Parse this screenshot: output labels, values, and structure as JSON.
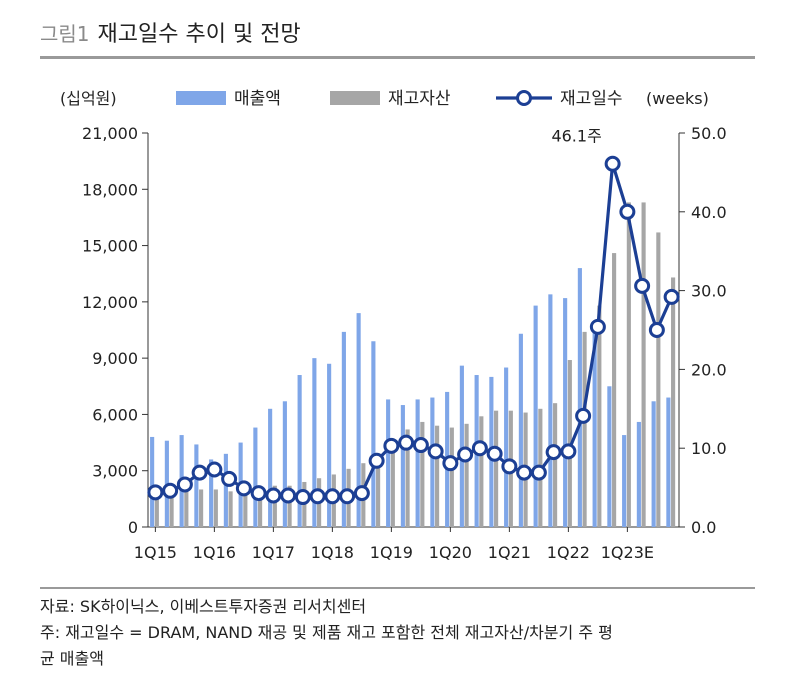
{
  "figure": {
    "label": "그림1",
    "title": "재고일수 추이 및 전망"
  },
  "chart_data": {
    "type": "bar",
    "left_unit": "(십억원)",
    "right_unit": "(weeks)",
    "left_ylim": [
      0,
      21000
    ],
    "left_ticks": [
      "0",
      "3,000",
      "6,000",
      "9,000",
      "12,000",
      "15,000",
      "18,000",
      "21,000"
    ],
    "right_ylim": [
      0,
      50
    ],
    "right_ticks": [
      "0.0",
      "10.0",
      "20.0",
      "30.0",
      "40.0",
      "50.0"
    ],
    "x_tick_labels": [
      "1Q15",
      "1Q16",
      "1Q17",
      "1Q18",
      "1Q19",
      "1Q20",
      "1Q21",
      "1Q22",
      "1Q23E"
    ],
    "peak_annotation": "46.1주",
    "colors": {
      "sales": "#7fa6e8",
      "inventory": "#a6a6a6",
      "days": "#1c3f94"
    },
    "series": [
      {
        "name": "매출액",
        "kind": "bar",
        "values": [
          4800,
          4600,
          4900,
          4400,
          3600,
          3900,
          4500,
          5300,
          6300,
          6700,
          8100,
          9000,
          8700,
          10400,
          11400,
          9900,
          6800,
          6500,
          6800,
          6900,
          7200,
          8600,
          8100,
          8000,
          8500,
          10300,
          11800,
          12400,
          12200,
          13800,
          10900,
          7500,
          4900,
          5600,
          6700,
          6900
        ]
      },
      {
        "name": "재고자산",
        "kind": "bar",
        "values": [
          1900,
          1900,
          2000,
          2000,
          2000,
          1900,
          2000,
          2100,
          2200,
          2200,
          2400,
          2600,
          2800,
          3100,
          3400,
          3900,
          4700,
          5200,
          5600,
          5400,
          5300,
          5500,
          5900,
          6200,
          6200,
          6100,
          6300,
          6600,
          8900,
          10400,
          11800,
          14600,
          17300,
          17300,
          15700,
          13300
        ]
      },
      {
        "name": "재고일수",
        "kind": "line",
        "values": [
          4.4,
          4.6,
          5.4,
          6.9,
          7.3,
          6.1,
          4.9,
          4.3,
          4.0,
          4.0,
          3.8,
          3.9,
          3.9,
          3.9,
          4.3,
          8.4,
          10.3,
          10.7,
          10.4,
          9.6,
          8.1,
          9.2,
          10.0,
          9.3,
          7.7,
          6.9,
          6.9,
          9.5,
          9.6,
          14.1,
          25.4,
          46.1,
          40.0,
          30.6,
          25.0,
          29.2
        ]
      }
    ]
  },
  "source": "자료: SK하이닉스, 이베스트투자증권 리서치센터",
  "note_line1": "주: 재고일수 = DRAM, NAND 재공 및 제품 재고 포함한 전체 재고자산/차분기 주 평",
  "note_line2": "균 매출액"
}
